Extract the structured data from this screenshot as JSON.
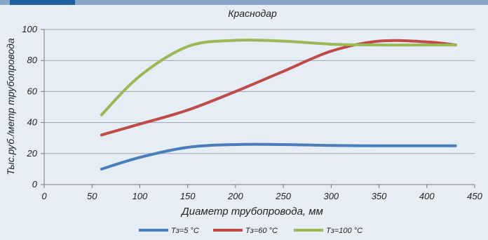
{
  "chart_data": {
    "type": "line",
    "title": "Краснодар",
    "xlabel": "Диаметр трубопровода, мм",
    "ylabel": "Тыс.руб./метр трубопровода",
    "xlim": [
      0,
      450
    ],
    "ylim": [
      0,
      100
    ],
    "x_ticks": [
      0,
      50,
      100,
      150,
      200,
      250,
      300,
      350,
      400,
      450
    ],
    "y_ticks": [
      0,
      20,
      40,
      60,
      80,
      100
    ],
    "grid": true,
    "legend_position": "bottom",
    "series": [
      {
        "name": "Тз=5 °С",
        "color": "#4a7ebb",
        "x": [
          60,
          100,
          150,
          200,
          250,
          300,
          350,
          400,
          430
        ],
        "y": [
          10,
          17.5,
          24,
          25.8,
          25.8,
          25.2,
          25,
          25,
          25
        ]
      },
      {
        "name": "Тз=60 °С",
        "color": "#be4b48",
        "x": [
          60,
          100,
          150,
          200,
          250,
          300,
          350,
          400,
          430
        ],
        "y": [
          32,
          39,
          48,
          60,
          73,
          86,
          92.5,
          92,
          90
        ]
      },
      {
        "name": "Тз=100 °С",
        "color": "#98b954",
        "x": [
          60,
          100,
          150,
          200,
          250,
          300,
          350,
          400,
          430
        ],
        "y": [
          45,
          70,
          89,
          93,
          92.5,
          90.5,
          90,
          90,
          90
        ]
      }
    ]
  }
}
